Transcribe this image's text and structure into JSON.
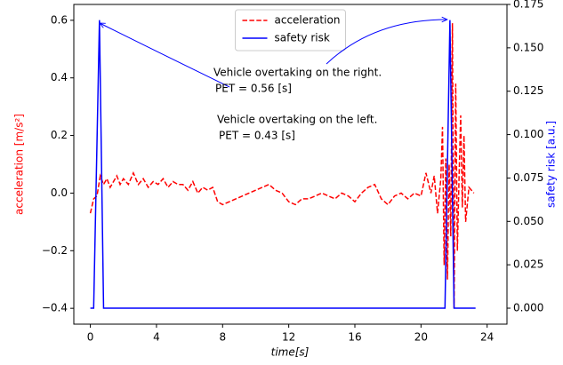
{
  "chart_data": {
    "type": "line",
    "xlabel": "time[s]",
    "ylabel": "acceleration [m/s²]",
    "y2label": "safety risk [a.u.]",
    "xlim": [
      -1,
      25.2
    ],
    "xticks": [
      0,
      4,
      8,
      12,
      16,
      20,
      24
    ],
    "ylim": [
      -0.455,
      0.655
    ],
    "yticks": [
      {
        "value": -0.4,
        "label": "−0.4"
      },
      {
        "value": -0.2,
        "label": "−0.2"
      },
      {
        "value": 0,
        "label": "0.0"
      },
      {
        "value": 0.2,
        "label": "0.2"
      },
      {
        "value": 0.4,
        "label": "0.4"
      },
      {
        "value": 0.6,
        "label": "0.6"
      }
    ],
    "y2lim": [
      -0.0092,
      0.175
    ],
    "y2ticks": [
      {
        "value": 0,
        "label": "0.000"
      },
      {
        "value": 0.025,
        "label": "0.025"
      },
      {
        "value": 0.05,
        "label": "0.050"
      },
      {
        "value": 0.075,
        "label": "0.075"
      },
      {
        "value": 0.1,
        "label": "0.100"
      },
      {
        "value": 0.125,
        "label": "0.125"
      },
      {
        "value": 0.15,
        "label": "0.150"
      },
      {
        "value": 0.175,
        "label": "0.175"
      }
    ],
    "legend": "upper center",
    "series": [
      {
        "name": "acceleration",
        "color": "#ff0000",
        "linestyle": "dashed",
        "axis": "y",
        "x": [
          0,
          0.2,
          0.4,
          0.6,
          0.8,
          1.0,
          1.2,
          1.4,
          1.6,
          1.8,
          2.0,
          2.3,
          2.6,
          2.9,
          3.2,
          3.5,
          3.8,
          4.1,
          4.4,
          4.7,
          5.0,
          5.3,
          5.6,
          5.9,
          6.2,
          6.5,
          6.8,
          7.1,
          7.4,
          7.7,
          8.0,
          8.4,
          8.8,
          9.2,
          9.6,
          10.0,
          10.4,
          10.8,
          11.2,
          11.6,
          12.0,
          12.4,
          12.8,
          13.2,
          13.6,
          14.0,
          14.4,
          14.8,
          15.2,
          15.6,
          16.0,
          16.4,
          16.8,
          17.2,
          17.6,
          18.0,
          18.4,
          18.8,
          19.2,
          19.6,
          20.0,
          20.3,
          20.6,
          20.8,
          21.0,
          21.2,
          21.3,
          21.4,
          21.5,
          21.6,
          21.7,
          21.8,
          21.9,
          22.0,
          22.1,
          22.2,
          22.3,
          22.4,
          22.5,
          22.6,
          22.7,
          22.9,
          23.2
        ],
        "values": [
          -0.07,
          -0.02,
          -0.01,
          0.06,
          0.03,
          0.05,
          0.02,
          0.04,
          0.06,
          0.03,
          0.05,
          0.03,
          0.07,
          0.03,
          0.05,
          0.02,
          0.04,
          0.03,
          0.05,
          0.02,
          0.04,
          0.03,
          0.03,
          0.01,
          0.04,
          0.0,
          0.02,
          0.01,
          0.02,
          -0.03,
          -0.04,
          -0.03,
          -0.02,
          -0.01,
          0.0,
          0.01,
          0.02,
          0.03,
          0.01,
          0.0,
          -0.03,
          -0.04,
          -0.02,
          -0.02,
          -0.01,
          0.0,
          -0.01,
          -0.02,
          0.0,
          -0.01,
          -0.03,
          0.0,
          0.02,
          0.03,
          -0.02,
          -0.04,
          -0.01,
          0.0,
          -0.02,
          0.0,
          -0.01,
          0.07,
          0.0,
          0.06,
          -0.07,
          0.05,
          0.23,
          -0.25,
          0.12,
          -0.3,
          0.1,
          -0.15,
          0.59,
          -0.4,
          0.38,
          -0.2,
          0.05,
          0.27,
          -0.05,
          0.2,
          -0.1,
          0.02,
          0.0
        ]
      },
      {
        "name": "safety risk",
        "color": "#0000ff",
        "linestyle": "solid",
        "axis": "y2",
        "x": [
          0,
          0.2,
          0.55,
          0.8,
          21.45,
          21.75,
          22.0,
          23.3
        ],
        "values": [
          0,
          0,
          0.166,
          0,
          0,
          0.166,
          0,
          0
        ]
      }
    ],
    "annotations": [
      {
        "text": "Vehicle overtaking on the right.",
        "detail": "PET = 0.56 [s]"
      },
      {
        "text": "Vehicle overtaking on the left.",
        "detail": "PET = 0.43 [s]"
      }
    ]
  }
}
